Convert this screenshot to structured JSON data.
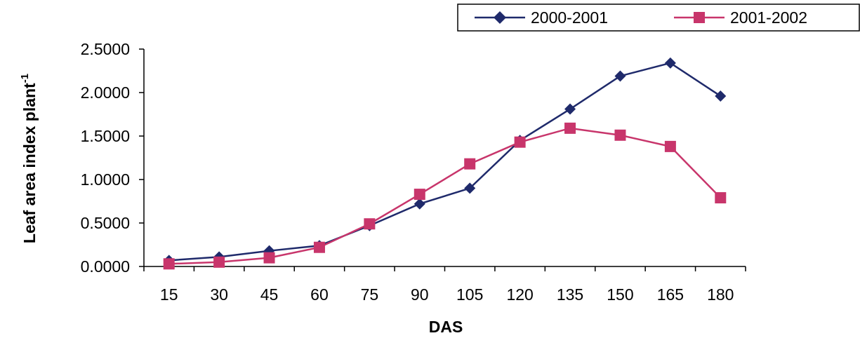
{
  "chart_data": {
    "type": "line",
    "x": [
      15,
      30,
      45,
      60,
      75,
      90,
      105,
      120,
      135,
      150,
      165,
      180
    ],
    "x_tick_labels": [
      "15",
      "30",
      "45",
      "60",
      "75",
      "90",
      "105",
      "120",
      "135",
      "150",
      "165",
      "180"
    ],
    "y_tick_labels": [
      "0.0000",
      "0.5000",
      "1.0000",
      "1.5000",
      "2.0000",
      "2.5000"
    ],
    "ylim": [
      0,
      2.5
    ],
    "xlabel": "DAS",
    "ylabel": "Leaf area index plant",
    "ylabel_superscript": "-1",
    "grid": false,
    "legend_position": "top-right",
    "series": [
      {
        "name": "2000-2001",
        "color": "#1f2a6b",
        "marker": "diamond",
        "values": [
          0.07,
          0.11,
          0.18,
          0.24,
          0.47,
          0.72,
          0.9,
          1.45,
          1.81,
          2.19,
          2.34,
          1.96
        ]
      },
      {
        "name": "2001-2002",
        "color": "#c8356b",
        "marker": "square",
        "values": [
          0.03,
          0.05,
          0.1,
          0.22,
          0.49,
          0.83,
          1.18,
          1.43,
          1.59,
          1.51,
          1.38,
          0.79
        ]
      }
    ]
  }
}
